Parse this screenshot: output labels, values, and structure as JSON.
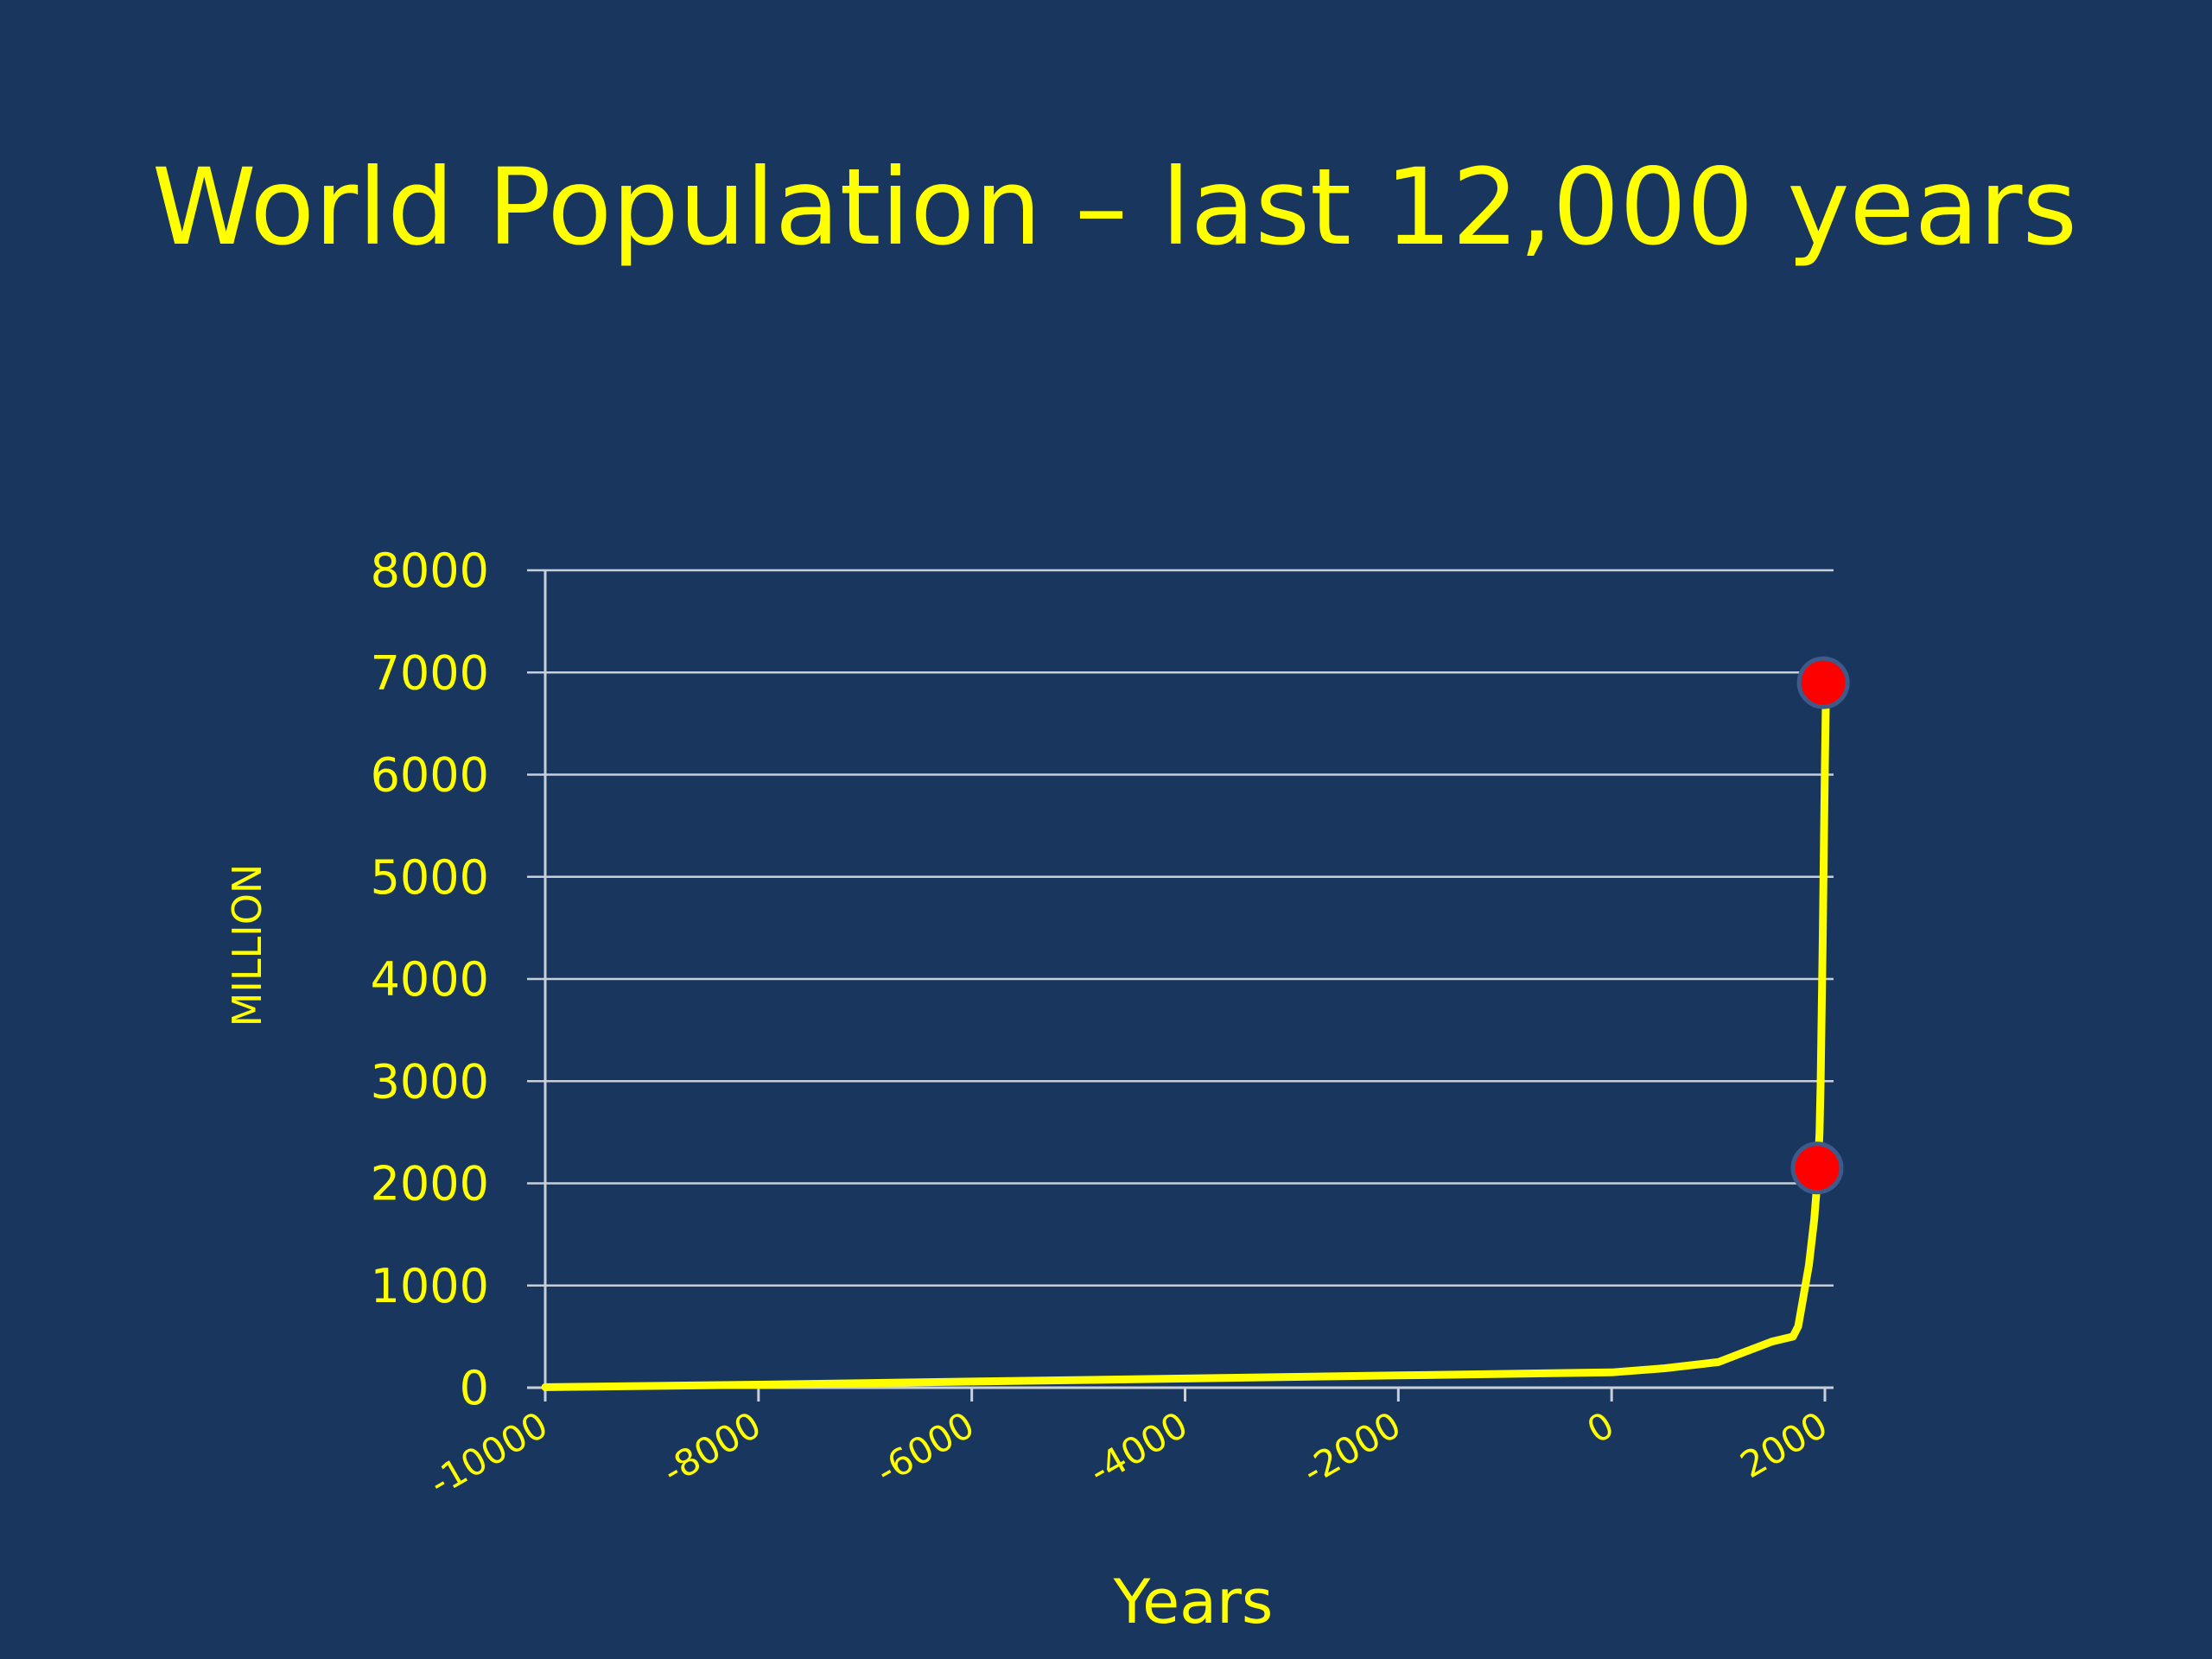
{
  "slide": {
    "background": "#19365e",
    "text_color": "#ffff00"
  },
  "chart_data": {
    "type": "line",
    "title": "World Population – last 12,000 years",
    "xlabel": "Years",
    "ylabel": "MILLION",
    "xlim": [
      -10000,
      2000
    ],
    "ylim": [
      0,
      8000
    ],
    "x_ticks": [
      -10000,
      -8000,
      -6000,
      -4000,
      -2000,
      0,
      2000
    ],
    "x_tick_labels": [
      "-10000",
      "-8000",
      "-6000",
      "-4000",
      "-2000",
      "0",
      "2000"
    ],
    "y_ticks": [
      0,
      1000,
      2000,
      3000,
      4000,
      5000,
      6000,
      7000,
      8000
    ],
    "y_tick_labels": [
      "0",
      "1000",
      "2000",
      "3000",
      "4000",
      "5000",
      "6000",
      "7000",
      "8000"
    ],
    "grid": true,
    "line_color": "#ffff00",
    "marker_color": "#ff0000",
    "marker_edge_color": "#3d5a8a",
    "series": [
      {
        "x": [
          -10000,
          -8000,
          -6000,
          -4000,
          -2000,
          0,
          500,
          1000,
          1250,
          1500,
          1700,
          1750,
          1800,
          1850,
          1900,
          1927,
          1950,
          1960,
          1970,
          1980,
          1990,
          2000,
          2011
        ],
        "y": [
          5,
          30,
          60,
          90,
          120,
          150,
          190,
          250,
          350,
          450,
          500,
          600,
          900,
          1200,
          1650,
          2000,
          2500,
          3000,
          3700,
          4400,
          5300,
          6100,
          6900
        ]
      }
    ],
    "highlighted_points": [
      {
        "x": 1927,
        "y": 2150
      },
      {
        "x": 1985,
        "y": 6900
      }
    ]
  }
}
